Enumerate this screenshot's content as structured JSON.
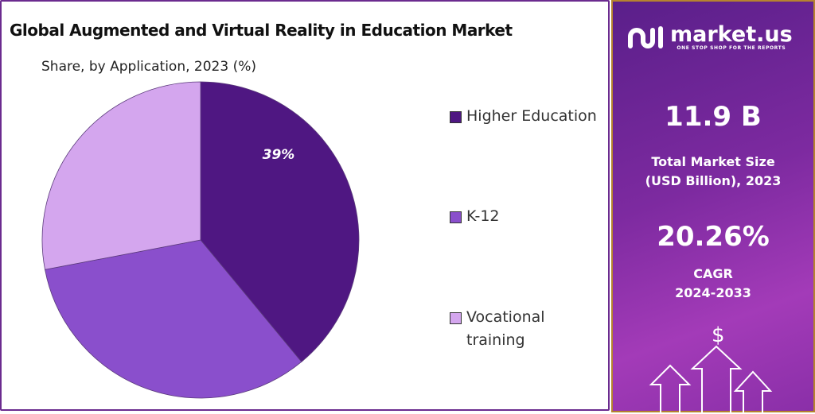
{
  "header": {
    "title": "Global Augmented and Virtual Reality in Education Market",
    "subtitle": "Share, by Application, 2023 (%)"
  },
  "chart_data": {
    "type": "pie",
    "title": "Global Augmented and Virtual Reality in Education Market",
    "subtitle": "Share, by Application, 2023 (%)",
    "categories": [
      "Higher Education",
      "K-12",
      "Vocational training"
    ],
    "values": [
      39,
      33,
      28
    ],
    "colors": [
      "#4f1782",
      "#8a4fcc",
      "#d4a6ee"
    ],
    "data_labels": [
      "39%",
      "",
      ""
    ],
    "legend_position": "right"
  },
  "sidebar": {
    "brand": "market.us",
    "tagline": "ONE STOP SHOP FOR THE REPORTS",
    "market_size": "11.9 B",
    "market_size_label_1": "Total Market Size",
    "market_size_label_2": "(USD Billion), 2023",
    "cagr": "20.26%",
    "cagr_label_1": "CAGR",
    "cagr_label_2": "2024-2033",
    "icons": [
      "dollar-icon",
      "arrow-up-icon"
    ]
  }
}
